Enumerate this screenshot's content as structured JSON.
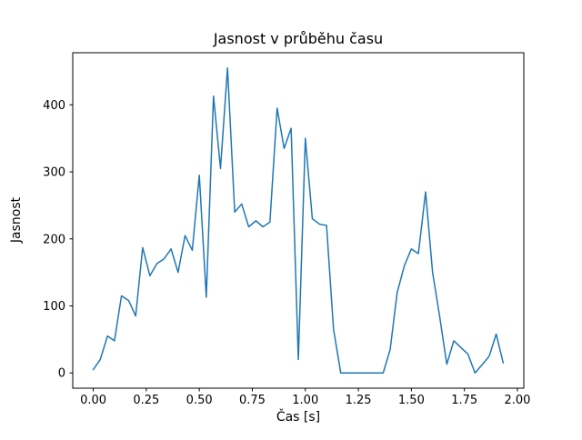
{
  "chart_data": {
    "type": "line",
    "title": "Jasnost v průběhu času",
    "xlabel": "Čas [s]",
    "ylabel": "Jasnost",
    "xlim": [
      -0.0967,
      2.0301
    ],
    "ylim": [
      -22.75,
      477.75
    ],
    "xticks": [
      0.0,
      0.25,
      0.5,
      0.75,
      1.0,
      1.25,
      1.5,
      1.75,
      2.0
    ],
    "yticks": [
      0,
      100,
      200,
      300,
      400
    ],
    "grid": false,
    "legend": "none",
    "line_color": "#1f77b4",
    "background_color": "#ffffff",
    "series": [
      {
        "name": "Jasnost",
        "x": [
          0.0,
          0.033,
          0.067,
          0.1,
          0.133,
          0.167,
          0.2,
          0.233,
          0.267,
          0.3,
          0.333,
          0.367,
          0.4,
          0.433,
          0.467,
          0.5,
          0.533,
          0.567,
          0.6,
          0.633,
          0.667,
          0.7,
          0.733,
          0.767,
          0.8,
          0.833,
          0.867,
          0.9,
          0.933,
          0.967,
          1.0,
          1.033,
          1.067,
          1.1,
          1.133,
          1.167,
          1.2,
          1.233,
          1.267,
          1.3,
          1.333,
          1.367,
          1.4,
          1.433,
          1.467,
          1.5,
          1.533,
          1.567,
          1.6,
          1.633,
          1.667,
          1.7,
          1.733,
          1.767,
          1.8,
          1.833,
          1.867,
          1.9,
          1.933
        ],
        "y": [
          5,
          20,
          55,
          48,
          115,
          108,
          85,
          187,
          145,
          163,
          170,
          185,
          150,
          205,
          183,
          295,
          113,
          413,
          305,
          455,
          240,
          252,
          218,
          227,
          218,
          225,
          395,
          335,
          365,
          20,
          350,
          230,
          222,
          220,
          65,
          0,
          0,
          0,
          0,
          0,
          0,
          0,
          35,
          120,
          160,
          185,
          178,
          270,
          150,
          85,
          13,
          48,
          38,
          28,
          0,
          12,
          25,
          58,
          15
        ]
      }
    ]
  }
}
